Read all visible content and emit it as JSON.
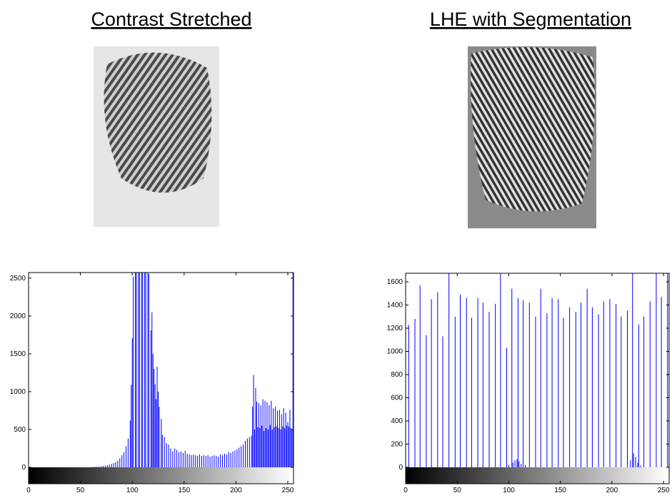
{
  "images": [
    {
      "title": "Contrast Stretched"
    },
    {
      "title": "LHE with Segmentation"
    }
  ],
  "chart_data": [
    {
      "type": "stem",
      "color": "#0000ff",
      "xlim": [
        0,
        255.5
      ],
      "xticks": [
        0,
        50,
        100,
        150,
        200,
        250
      ],
      "ylim": [
        -217,
        2575
      ],
      "yticks": [
        0,
        500,
        1000,
        1500,
        2000,
        2500
      ],
      "x": [
        60,
        62,
        64,
        66,
        68,
        70,
        72,
        74,
        76,
        78,
        80,
        82,
        84,
        86,
        88,
        90,
        92,
        94,
        96,
        98,
        99,
        100,
        101,
        103,
        104,
        106,
        107,
        109,
        110,
        112,
        113,
        115,
        116,
        118,
        119,
        120,
        121,
        122,
        123,
        124,
        125,
        126,
        128,
        129,
        131,
        133,
        135,
        137,
        139,
        141,
        143,
        145,
        147,
        149,
        151,
        153,
        155,
        157,
        159,
        161,
        163,
        165,
        167,
        169,
        171,
        173,
        175,
        177,
        179,
        181,
        183,
        185,
        187,
        189,
        191,
        193,
        195,
        197,
        199,
        201,
        203,
        205,
        207,
        209,
        211,
        213,
        215,
        216,
        217,
        218,
        219,
        220,
        221,
        222,
        223,
        224,
        225,
        226,
        227,
        228,
        229,
        230,
        231,
        232,
        233,
        234,
        235,
        236,
        237,
        238,
        239,
        240,
        241,
        242,
        243,
        244,
        245,
        246,
        247,
        248,
        249,
        250,
        251,
        252,
        253,
        254,
        255
      ],
      "values": [
        5,
        6,
        8,
        10,
        12,
        15,
        18,
        22,
        28,
        35,
        45,
        55,
        70,
        90,
        120,
        160,
        200,
        280,
        380,
        620,
        1090,
        1710,
        2520,
        2575,
        2575,
        2575,
        2575,
        2575,
        2575,
        2575,
        2575,
        2575,
        2560,
        1810,
        2050,
        1500,
        1300,
        1100,
        900,
        1330,
        1000,
        800,
        640,
        430,
        400,
        320,
        300,
        250,
        210,
        250,
        230,
        200,
        210,
        190,
        220,
        180,
        170,
        160,
        170,
        160,
        150,
        170,
        150,
        160,
        150,
        160,
        140,
        150,
        160,
        150,
        140,
        170,
        160,
        180,
        170,
        200,
        190,
        210,
        220,
        240,
        260,
        280,
        300,
        350,
        380,
        400,
        420,
        800,
        1220,
        500,
        1050,
        870,
        530,
        850,
        520,
        820,
        550,
        900,
        480,
        880,
        520,
        860,
        500,
        820,
        560,
        880,
        500,
        780,
        530,
        800,
        540,
        750,
        520,
        760,
        500,
        700,
        540,
        780,
        520,
        720,
        550,
        600,
        540,
        760,
        520,
        500,
        2575
      ]
    },
    {
      "type": "stem",
      "color": "#0000ff",
      "xlim": [
        0,
        255.5
      ],
      "xticks": [
        0,
        50,
        100,
        150,
        200,
        250
      ],
      "ylim": [
        -142,
        1674
      ],
      "yticks": [
        0,
        200,
        400,
        600,
        800,
        1000,
        1200,
        1400,
        1600
      ],
      "x": [
        3,
        9,
        14,
        20,
        25,
        31,
        36,
        42,
        48,
        53,
        59,
        64,
        70,
        75,
        81,
        87,
        92,
        98,
        100,
        103,
        104,
        106,
        108,
        109,
        110,
        112,
        114,
        116,
        120,
        126,
        131,
        137,
        142,
        148,
        153,
        159,
        165,
        170,
        176,
        181,
        187,
        192,
        198,
        204,
        209,
        215,
        218,
        220,
        221,
        223,
        225,
        226,
        228,
        231,
        237,
        243,
        248,
        254
      ],
      "values": [
        1230,
        1280,
        1570,
        1140,
        1450,
        1510,
        1130,
        1674,
        1300,
        1490,
        1460,
        1290,
        1460,
        1420,
        1340,
        1410,
        1674,
        1030,
        20,
        1540,
        40,
        60,
        70,
        1460,
        50,
        30,
        1440,
        20,
        1420,
        1300,
        1540,
        1330,
        1460,
        1450,
        1290,
        1380,
        1340,
        1420,
        1540,
        1380,
        1320,
        1430,
        1450,
        1410,
        1300,
        1350,
        60,
        1674,
        120,
        90,
        40,
        1230,
        15,
        1300,
        1430,
        1674,
        1470,
        1674
      ]
    }
  ]
}
